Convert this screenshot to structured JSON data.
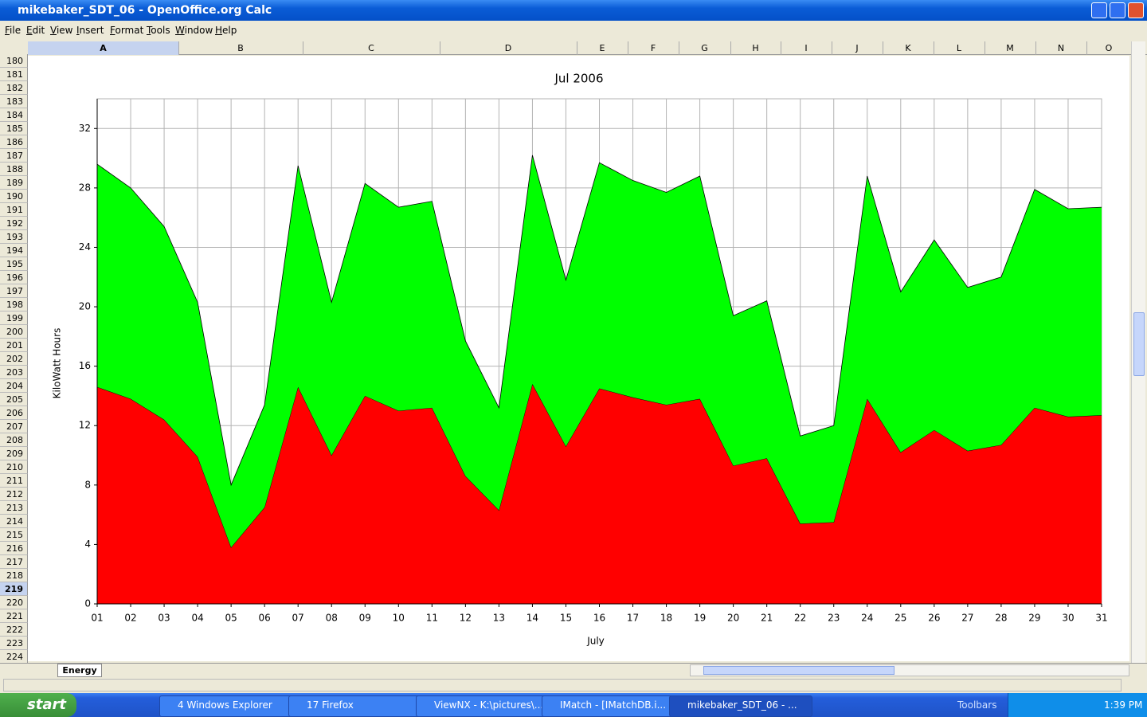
{
  "window": {
    "title": "mikebaker_SDT_06 - OpenOffice.org Calc"
  },
  "menu": [
    "File",
    "Edit",
    "View",
    "Insert",
    "Format",
    "Tools",
    "Window",
    "Help"
  ],
  "columns": [
    "A",
    "B",
    "C",
    "D",
    "E",
    "F",
    "G",
    "H",
    "I",
    "J",
    "K",
    "L",
    "M",
    "N",
    "O"
  ],
  "rows": [
    180,
    181,
    182,
    183,
    184,
    185,
    186,
    187,
    188,
    189,
    190,
    191,
    192,
    193,
    194,
    195,
    196,
    197,
    198,
    199,
    200,
    201,
    202,
    203,
    204,
    205,
    206,
    207,
    208,
    209,
    210,
    211,
    212,
    213,
    214,
    215,
    216,
    217,
    218,
    219,
    220,
    221,
    222,
    223,
    224
  ],
  "sheet_tab": "Energy",
  "taskbar": {
    "start": "start",
    "buttons": [
      "4 Windows Explorer",
      "17 Firefox",
      "ViewNX - K:\\pictures\\...",
      "IMatch - [IMatchDB.i...",
      "mikebaker_SDT_06 - ..."
    ],
    "tray_label": "Toolbars",
    "clock": "1:39 PM"
  },
  "chart_data": {
    "type": "area",
    "stacked": true,
    "title": "Jul 2006",
    "x_label": "July",
    "y_label": "KiloWatt Hours",
    "categories": [
      "01",
      "02",
      "03",
      "04",
      "05",
      "06",
      "07",
      "08",
      "09",
      "10",
      "11",
      "12",
      "13",
      "14",
      "15",
      "16",
      "17",
      "18",
      "19",
      "20",
      "21",
      "22",
      "23",
      "24",
      "25",
      "26",
      "27",
      "28",
      "29",
      "30",
      "31"
    ],
    "series": [
      {
        "color": "#ff0000",
        "values": [
          14.6,
          13.8,
          12.4,
          9.9,
          3.8,
          6.5,
          14.6,
          10.0,
          14.0,
          13.0,
          13.2,
          8.6,
          6.3,
          14.8,
          10.6,
          14.5,
          13.9,
          13.4,
          13.8,
          9.3,
          9.8,
          5.4,
          5.5,
          13.8,
          10.2,
          11.7,
          10.3,
          10.7,
          13.2,
          12.6,
          12.7
        ]
      },
      {
        "color": "#00ff00",
        "values": [
          15.0,
          14.2,
          13.0,
          10.4,
          4.2,
          6.9,
          14.9,
          10.3,
          14.3,
          13.7,
          13.9,
          9.1,
          6.9,
          15.4,
          11.2,
          15.2,
          14.6,
          14.3,
          15.0,
          10.1,
          10.6,
          5.9,
          6.5,
          15.0,
          10.8,
          12.8,
          11.0,
          11.3,
          14.7,
          14.0,
          14.0
        ]
      }
    ],
    "ylim": [
      0,
      34
    ],
    "yticks": [
      0,
      4,
      8,
      12,
      16,
      20,
      24,
      28,
      32
    ],
    "grid": true
  }
}
